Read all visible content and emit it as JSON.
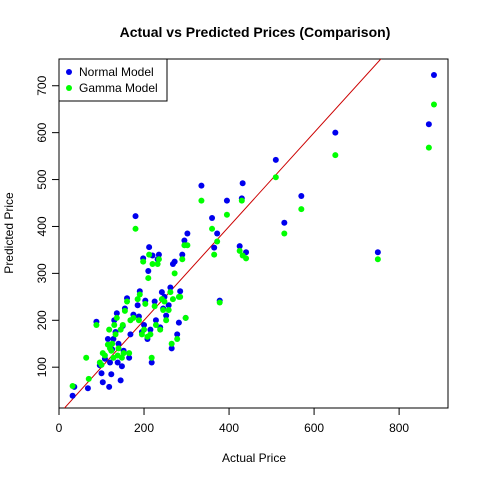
{
  "chart_data": {
    "type": "scatter",
    "title": "Actual vs Predicted Prices (Comparison)",
    "xlabel": "Actual Price",
    "ylabel": "Predicted Price",
    "xlim": [
      0,
      915
    ],
    "ylim": [
      13,
      757
    ],
    "xticks": [
      0,
      200,
      400,
      600,
      800
    ],
    "yticks": [
      100,
      200,
      300,
      400,
      500,
      600,
      700
    ],
    "legend_position": "top-left",
    "reference_line": {
      "type": "y=x",
      "color": "#cc0000"
    },
    "grid": false,
    "series": [
      {
        "name": "Normal Model",
        "color": "#0000ee",
        "points": [
          [
            32,
            39
          ],
          [
            36,
            58
          ],
          [
            68,
            55
          ],
          [
            88,
            197
          ],
          [
            96,
            104
          ],
          [
            100,
            87
          ],
          [
            103,
            68
          ],
          [
            108,
            118
          ],
          [
            115,
            160
          ],
          [
            118,
            58
          ],
          [
            120,
            110
          ],
          [
            123,
            85
          ],
          [
            125,
            138
          ],
          [
            128,
            160
          ],
          [
            130,
            200
          ],
          [
            133,
            175
          ],
          [
            136,
            215
          ],
          [
            138,
            110
          ],
          [
            140,
            150
          ],
          [
            145,
            72
          ],
          [
            148,
            102
          ],
          [
            150,
            188
          ],
          [
            152,
            135
          ],
          [
            155,
            225
          ],
          [
            160,
            247
          ],
          [
            165,
            120
          ],
          [
            168,
            170
          ],
          [
            175,
            212
          ],
          [
            180,
            422
          ],
          [
            185,
            232
          ],
          [
            188,
            208
          ],
          [
            190,
            262
          ],
          [
            195,
            175
          ],
          [
            198,
            332
          ],
          [
            200,
            190
          ],
          [
            203,
            242
          ],
          [
            208,
            160
          ],
          [
            210,
            305
          ],
          [
            212,
            356
          ],
          [
            215,
            180
          ],
          [
            218,
            110
          ],
          [
            220,
            338
          ],
          [
            225,
            240
          ],
          [
            228,
            200
          ],
          [
            232,
            330
          ],
          [
            235,
            340
          ],
          [
            238,
            185
          ],
          [
            242,
            260
          ],
          [
            245,
            225
          ],
          [
            248,
            250
          ],
          [
            252,
            210
          ],
          [
            258,
            232
          ],
          [
            262,
            270
          ],
          [
            265,
            140
          ],
          [
            268,
            320
          ],
          [
            272,
            325
          ],
          [
            278,
            170
          ],
          [
            282,
            195
          ],
          [
            285,
            262
          ],
          [
            290,
            340
          ],
          [
            295,
            370
          ],
          [
            298,
            205
          ],
          [
            302,
            385
          ],
          [
            335,
            487
          ],
          [
            360,
            418
          ],
          [
            365,
            355
          ],
          [
            372,
            385
          ],
          [
            378,
            242
          ],
          [
            395,
            455
          ],
          [
            425,
            358
          ],
          [
            430,
            460
          ],
          [
            432,
            492
          ],
          [
            440,
            345
          ],
          [
            510,
            542
          ],
          [
            530,
            408
          ],
          [
            570,
            465
          ],
          [
            650,
            600
          ],
          [
            750,
            345
          ],
          [
            870,
            618
          ],
          [
            882,
            723
          ]
        ]
      },
      {
        "name": "Gamma Model",
        "color": "#00ff00",
        "points": [
          [
            32,
            60
          ],
          [
            64,
            120
          ],
          [
            70,
            75
          ],
          [
            88,
            190
          ],
          [
            96,
            110
          ],
          [
            100,
            105
          ],
          [
            103,
            130
          ],
          [
            108,
            125
          ],
          [
            115,
            148
          ],
          [
            118,
            180
          ],
          [
            120,
            140
          ],
          [
            123,
            135
          ],
          [
            125,
            150
          ],
          [
            128,
            120
          ],
          [
            130,
            190
          ],
          [
            133,
            170
          ],
          [
            136,
            205
          ],
          [
            138,
            125
          ],
          [
            140,
            140
          ],
          [
            145,
            180
          ],
          [
            148,
            120
          ],
          [
            150,
            190
          ],
          [
            152,
            130
          ],
          [
            155,
            220
          ],
          [
            160,
            240
          ],
          [
            165,
            130
          ],
          [
            168,
            200
          ],
          [
            175,
            205
          ],
          [
            180,
            395
          ],
          [
            185,
            245
          ],
          [
            188,
            200
          ],
          [
            190,
            255
          ],
          [
            195,
            170
          ],
          [
            198,
            325
          ],
          [
            200,
            180
          ],
          [
            203,
            235
          ],
          [
            208,
            165
          ],
          [
            210,
            290
          ],
          [
            212,
            340
          ],
          [
            215,
            170
          ],
          [
            218,
            120
          ],
          [
            220,
            320
          ],
          [
            225,
            230
          ],
          [
            228,
            190
          ],
          [
            232,
            320
          ],
          [
            235,
            330
          ],
          [
            238,
            180
          ],
          [
            242,
            245
          ],
          [
            245,
            222
          ],
          [
            248,
            240
          ],
          [
            252,
            200
          ],
          [
            258,
            222
          ],
          [
            262,
            260
          ],
          [
            265,
            150
          ],
          [
            268,
            245
          ],
          [
            272,
            300
          ],
          [
            278,
            160
          ],
          [
            282,
            250
          ],
          [
            285,
            250
          ],
          [
            290,
            330
          ],
          [
            295,
            360
          ],
          [
            298,
            205
          ],
          [
            302,
            360
          ],
          [
            335,
            455
          ],
          [
            360,
            395
          ],
          [
            365,
            340
          ],
          [
            372,
            368
          ],
          [
            378,
            238
          ],
          [
            395,
            425
          ],
          [
            425,
            348
          ],
          [
            430,
            455
          ],
          [
            432,
            338
          ],
          [
            440,
            332
          ],
          [
            510,
            505
          ],
          [
            530,
            385
          ],
          [
            570,
            437
          ],
          [
            650,
            552
          ],
          [
            750,
            330
          ],
          [
            870,
            568
          ],
          [
            882,
            660
          ]
        ]
      }
    ]
  }
}
